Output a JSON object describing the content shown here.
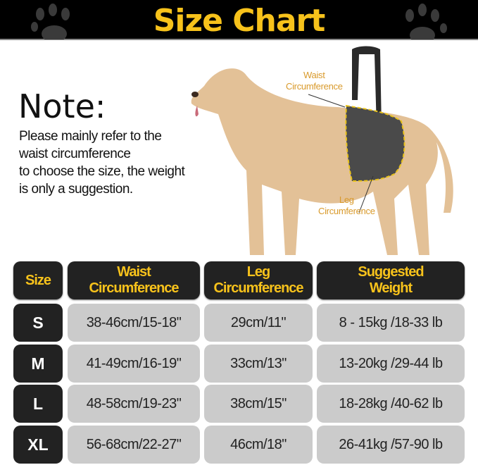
{
  "header": {
    "title": "Size Chart"
  },
  "note": {
    "title": "Note:",
    "lines": [
      "Please mainly refer to the",
      "waist circumference",
      "to choose the size, the weight",
      "is only a suggestion."
    ]
  },
  "labels": {
    "waist": [
      "Waist",
      "Circumference"
    ],
    "leg": [
      "Leg",
      "Circumference"
    ]
  },
  "colors": {
    "accent": "#f7c21b",
    "banner": "#000000",
    "header_cell": "#222222",
    "value_cell": "#cbcbcb"
  },
  "table": {
    "headers": [
      [
        "Size"
      ],
      [
        "Waist",
        "Circumference"
      ],
      [
        "Leg",
        "Circumference"
      ],
      [
        "Suggested",
        "Weight"
      ]
    ],
    "rows": [
      [
        "S",
        "38-46cm/15-18\"",
        "29cm/11\"",
        "8 - 15kg /18-33 lb"
      ],
      [
        "M",
        "41-49cm/16-19\"",
        "33cm/13\"",
        "13-20kg /29-44 lb"
      ],
      [
        "L",
        "48-58cm/19-23\"",
        "38cm/15\"",
        "18-28kg /40-62 lb"
      ],
      [
        "XL",
        "56-68cm/22-27\"",
        "46cm/18\"",
        "26-41kg /57-90 lb"
      ]
    ]
  }
}
